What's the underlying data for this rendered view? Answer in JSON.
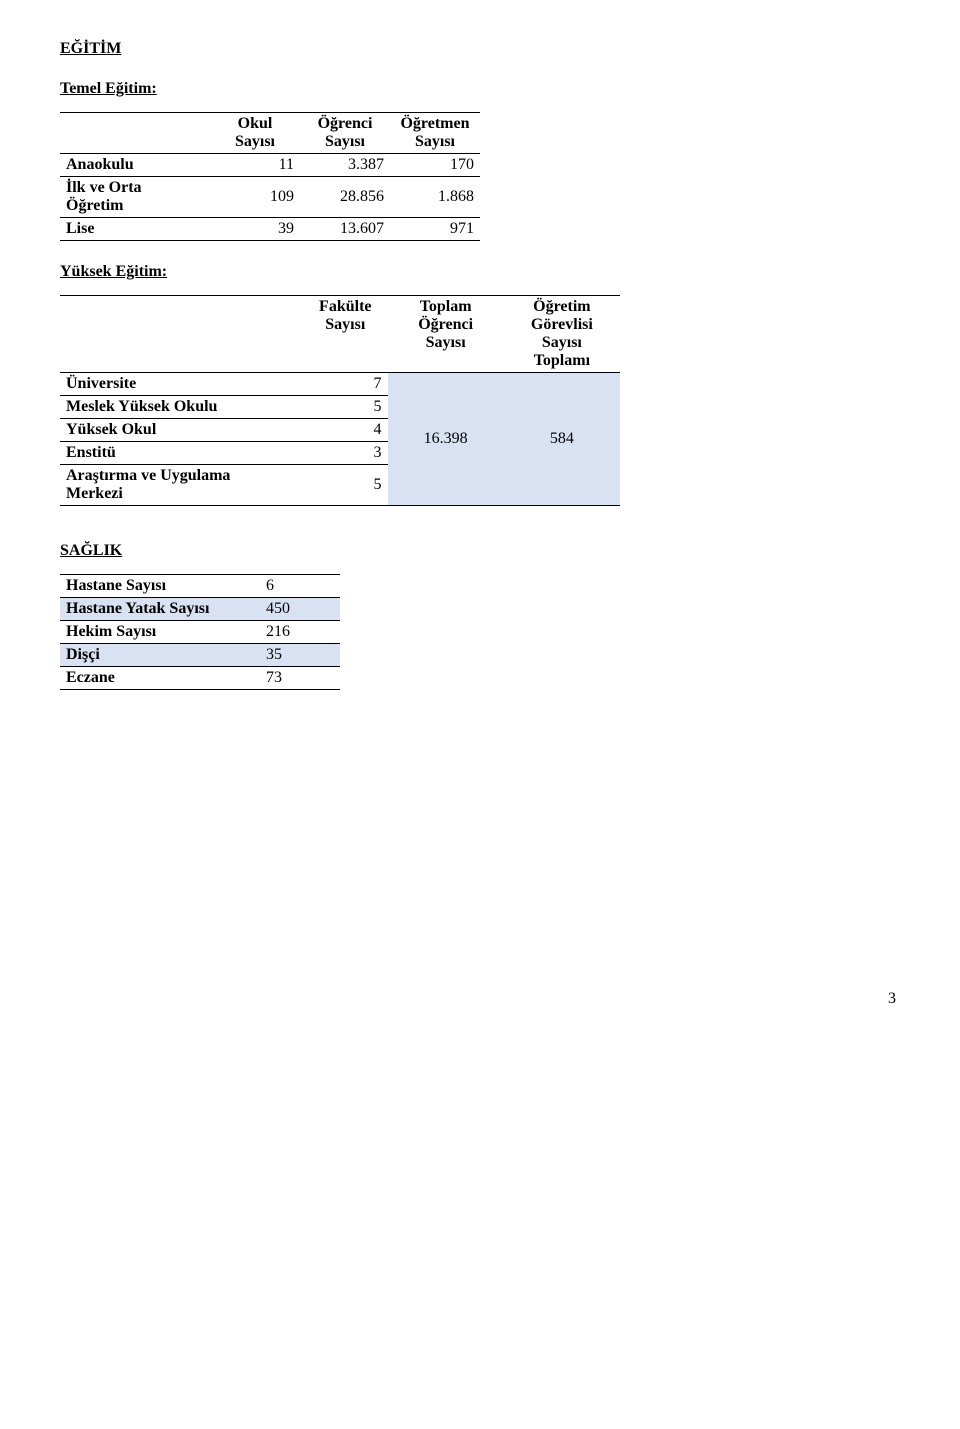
{
  "section_egitim": {
    "title": "EĞİTİM"
  },
  "temel_egitim": {
    "title": "Temel Eğitim:",
    "columns": {
      "c0": "",
      "c1": "Okul\nSayısı",
      "c2": "Öğrenci\nSayısı",
      "c3": "Öğretmen\nSayısı"
    },
    "rows": [
      {
        "label": "Anaokulu",
        "c1": "11",
        "c2": "3.387",
        "c3": "170"
      },
      {
        "label": "İlk ve Orta\nÖğretim",
        "c1": "109",
        "c2": "28.856",
        "c3": "1.868"
      },
      {
        "label": "Lise",
        "c1": "39",
        "c2": "13.607",
        "c3": "971"
      }
    ]
  },
  "yuksek_egitim": {
    "title": "Yüksek Eğitim:",
    "columns": {
      "c0": "",
      "c1": "Fakülte\nSayısı",
      "c2": "Toplam\nÖğrenci\nSayısı",
      "c3": "Öğretim\nGörevlisi\nSayısı\nToplamı"
    },
    "rows": [
      {
        "label": "Üniversite",
        "c1": "7"
      },
      {
        "label": "Meslek Yüksek Okulu",
        "c1": "5"
      },
      {
        "label": "Yüksek Okul",
        "c1": "4"
      },
      {
        "label": "Enstitü",
        "c1": "3"
      },
      {
        "label": "Araştırma ve Uygulama\nMerkezi",
        "c1": "5"
      }
    ],
    "merged": {
      "ogrenci": "16.398",
      "gorevli": "584"
    },
    "highlight_color": "#d9e2f3"
  },
  "saglik": {
    "title": "SAĞLIK",
    "rows": [
      {
        "label": "Hastane Sayısı",
        "val": "6",
        "hl": false
      },
      {
        "label": "Hastane Yatak Sayısı",
        "val": "450",
        "hl": true
      },
      {
        "label": "Hekim Sayısı",
        "val": "216",
        "hl": false
      },
      {
        "label": "Dişçi",
        "val": "35",
        "hl": true
      },
      {
        "label": "Eczane",
        "val": "73",
        "hl": false
      }
    ],
    "highlight_color": "#d9e2f3"
  },
  "page_number": "3"
}
